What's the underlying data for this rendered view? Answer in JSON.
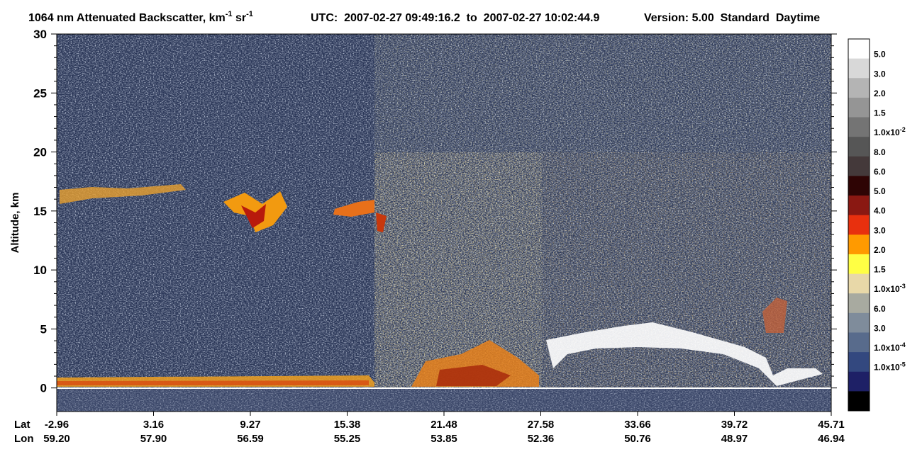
{
  "chart_data": {
    "type": "curtain",
    "title_segments": [
      "1064 nm Attenuated Backscatter, km",
      "-1",
      " sr",
      "-1"
    ],
    "utc": "UTC:  2007-02-27 09:49:16.2  to  2007-02-27 10:02:44.9",
    "version": "Version: 5.00  Standard  Daytime",
    "y_label": "Altitude, km",
    "ylim": [
      -2,
      30
    ],
    "yticks": [
      0,
      5,
      10,
      15,
      20,
      25,
      30
    ],
    "lat_label": "Lat",
    "lon_label": "Lon",
    "lat": [
      "-2.96",
      "3.16",
      "9.27",
      "15.38",
      "21.48",
      "27.58",
      "33.66",
      "39.72",
      "45.71"
    ],
    "lon": [
      "59.20",
      "57.90",
      "56.59",
      "55.25",
      "53.85",
      "52.36",
      "50.76",
      "48.97",
      "46.94"
    ],
    "colorbar_colors": [
      "#ffffff",
      "#d8d8d8",
      "#b4b4b4",
      "#959595",
      "#747474",
      "#565656",
      "#44393a",
      "#2e0404",
      "#8a1812",
      "#e8300e",
      "#ff9a00",
      "#ffff44",
      "#e8d8a8",
      "#a8aaa0",
      "#7f8c9b",
      "#586b8c",
      "#33487f",
      "#1e2066",
      "#000000"
    ],
    "colorbar_labels": [
      {
        "text": "5.0"
      },
      {
        "text": "3.0"
      },
      {
        "text": "2.0"
      },
      {
        "text": "1.5"
      },
      {
        "text": "1.0x10",
        "exp": "-2"
      },
      {
        "text": "8.0"
      },
      {
        "text": "6.0"
      },
      {
        "text": "5.0"
      },
      {
        "text": "4.0"
      },
      {
        "text": "3.0"
      },
      {
        "text": "2.0"
      },
      {
        "text": "1.5"
      },
      {
        "text": "1.0x10",
        "exp": "-3"
      },
      {
        "text": "6.0"
      },
      {
        "text": "3.0"
      },
      {
        "text": "1.0x10",
        "exp": "-4"
      },
      {
        "text": "1.0x10",
        "exp": "-5"
      }
    ]
  }
}
